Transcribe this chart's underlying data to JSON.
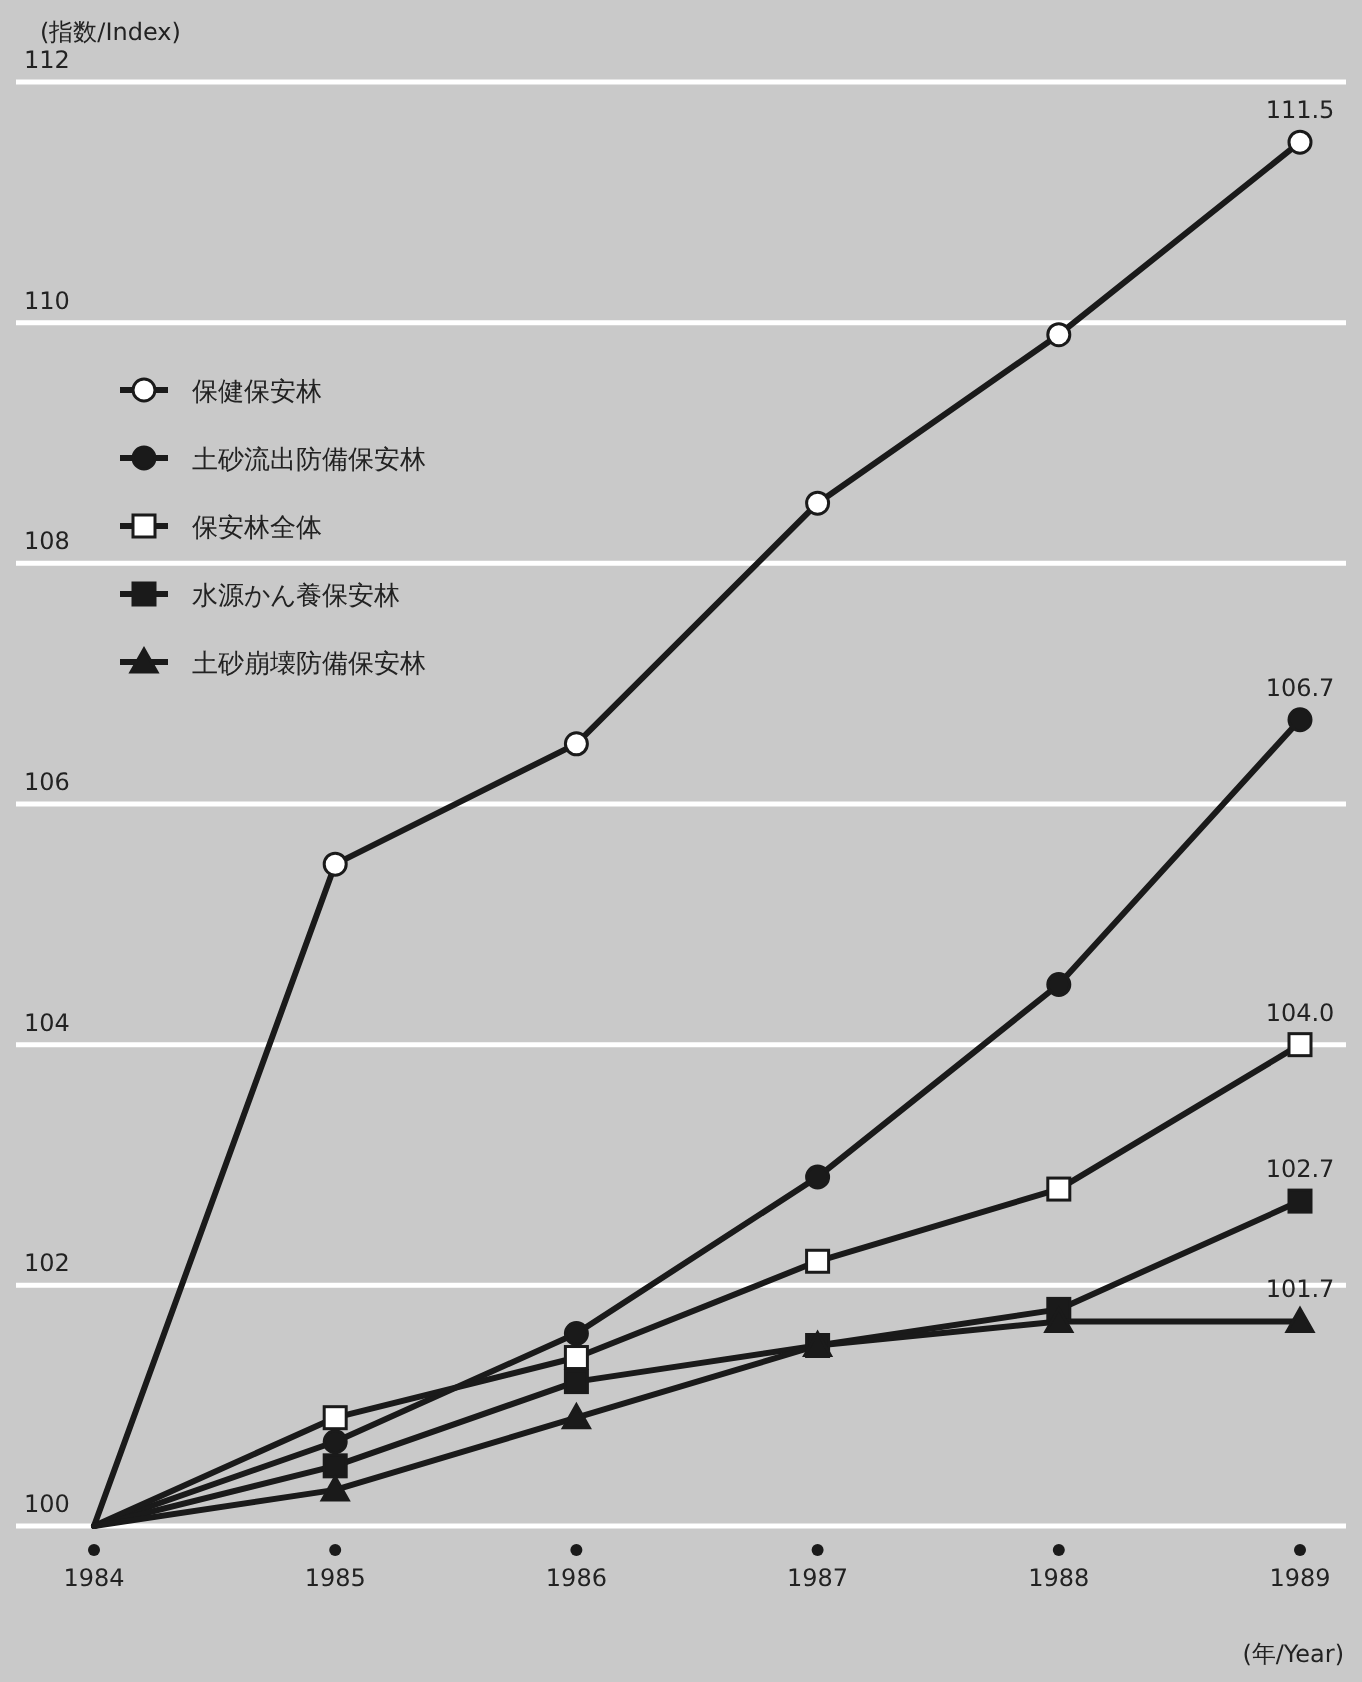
{
  "chart_data": {
    "type": "line",
    "ylabel": "(指数/Index)",
    "xlabel": "(年/Year)",
    "categories": [
      "1984",
      "1985",
      "1986",
      "1987",
      "1988",
      "1989"
    ],
    "series": [
      {
        "name": "保健保安林",
        "color": "#1a1a1a",
        "marker": "circle-open",
        "values": [
          100,
          105.5,
          106.5,
          108.5,
          109.9,
          111.5
        ],
        "value_labels": [
          null,
          null,
          null,
          null,
          null,
          "111.5"
        ]
      },
      {
        "name": "土砂流出防備保安林",
        "color": "#1a1a1a",
        "marker": "circle",
        "values": [
          100,
          100.7,
          101.6,
          102.9,
          104.5,
          106.7
        ],
        "value_labels": [
          null,
          null,
          null,
          null,
          null,
          "106.7"
        ]
      },
      {
        "name": "保安林全体",
        "color": "#1a1a1a",
        "marker": "square-open",
        "values": [
          100,
          100.9,
          101.4,
          102.2,
          102.8,
          104.0
        ],
        "value_labels": [
          null,
          null,
          null,
          null,
          null,
          "104.0"
        ]
      },
      {
        "name": "水源かん養保安林",
        "color": "#1a1a1a",
        "marker": "square",
        "values": [
          100,
          100.5,
          101.2,
          101.5,
          101.8,
          102.7
        ],
        "value_labels": [
          null,
          null,
          null,
          null,
          null,
          "102.7"
        ]
      },
      {
        "name": "土砂崩壊防備保安林",
        "color": "#1a1a1a",
        "marker": "triangle",
        "values": [
          100,
          100.3,
          100.9,
          101.5,
          101.7,
          101.7
        ],
        "value_labels": [
          null,
          null,
          null,
          null,
          null,
          "101.7"
        ]
      }
    ],
    "ylim": [
      100,
      112
    ],
    "yticks": [
      100,
      102,
      104,
      106,
      108,
      110,
      112
    ],
    "grid": "y",
    "legend": "top left"
  }
}
